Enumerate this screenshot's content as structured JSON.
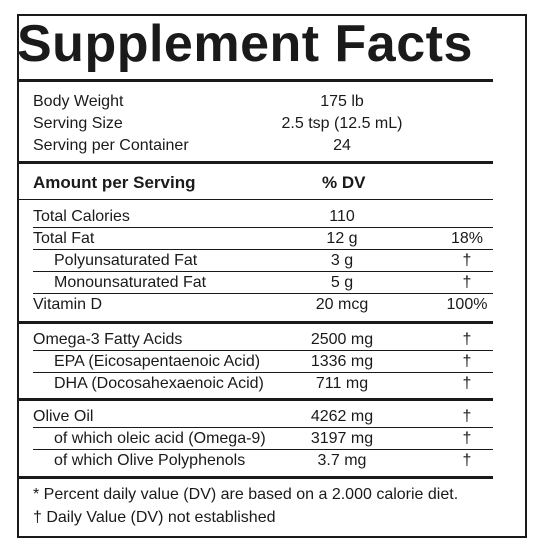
{
  "title": "Supplement Facts",
  "info": [
    {
      "label": "Body Weight",
      "value": "175 lb"
    },
    {
      "label": "Serving Size",
      "value": "2.5 tsp (12.5 mL)"
    },
    {
      "label": "Serving per Container",
      "value": "24"
    }
  ],
  "header": {
    "amount": "Amount per Serving",
    "dv": "% DV"
  },
  "rows": [
    {
      "label": "Total Calories",
      "amount": "110",
      "dv": ""
    },
    {
      "label": "Total Fat",
      "amount": "12 g",
      "dv": "18%"
    },
    {
      "label": "Polyunsaturated Fat",
      "amount": "3 g",
      "dv": "†"
    },
    {
      "label": "Monounsaturated Fat",
      "amount": "5 g",
      "dv": "†"
    },
    {
      "label": "Vitamin D",
      "amount": "20 mcg",
      "dv": "100%"
    },
    {
      "label": "Omega-3 Fatty Acids",
      "amount": "2500 mg",
      "dv": "†"
    },
    {
      "label": "EPA (Eicosapentaenoic Acid)",
      "amount": "1336 mg",
      "dv": "†"
    },
    {
      "label": "DHA (Docosahexaenoic Acid)",
      "amount": "711 mg",
      "dv": "†"
    },
    {
      "label": "Olive Oil",
      "amount": "4262 mg",
      "dv": "†"
    },
    {
      "label": "of which oleic acid (Omega-9)",
      "amount": "3197 mg",
      "dv": "†"
    },
    {
      "label": "of which Olive Polyphenols",
      "amount": "3.7 mg",
      "dv": "†"
    }
  ],
  "footnotes": [
    "* Percent daily value (DV) are based on a 2.000 calorie diet.",
    "† Daily Value (DV) not established"
  ]
}
